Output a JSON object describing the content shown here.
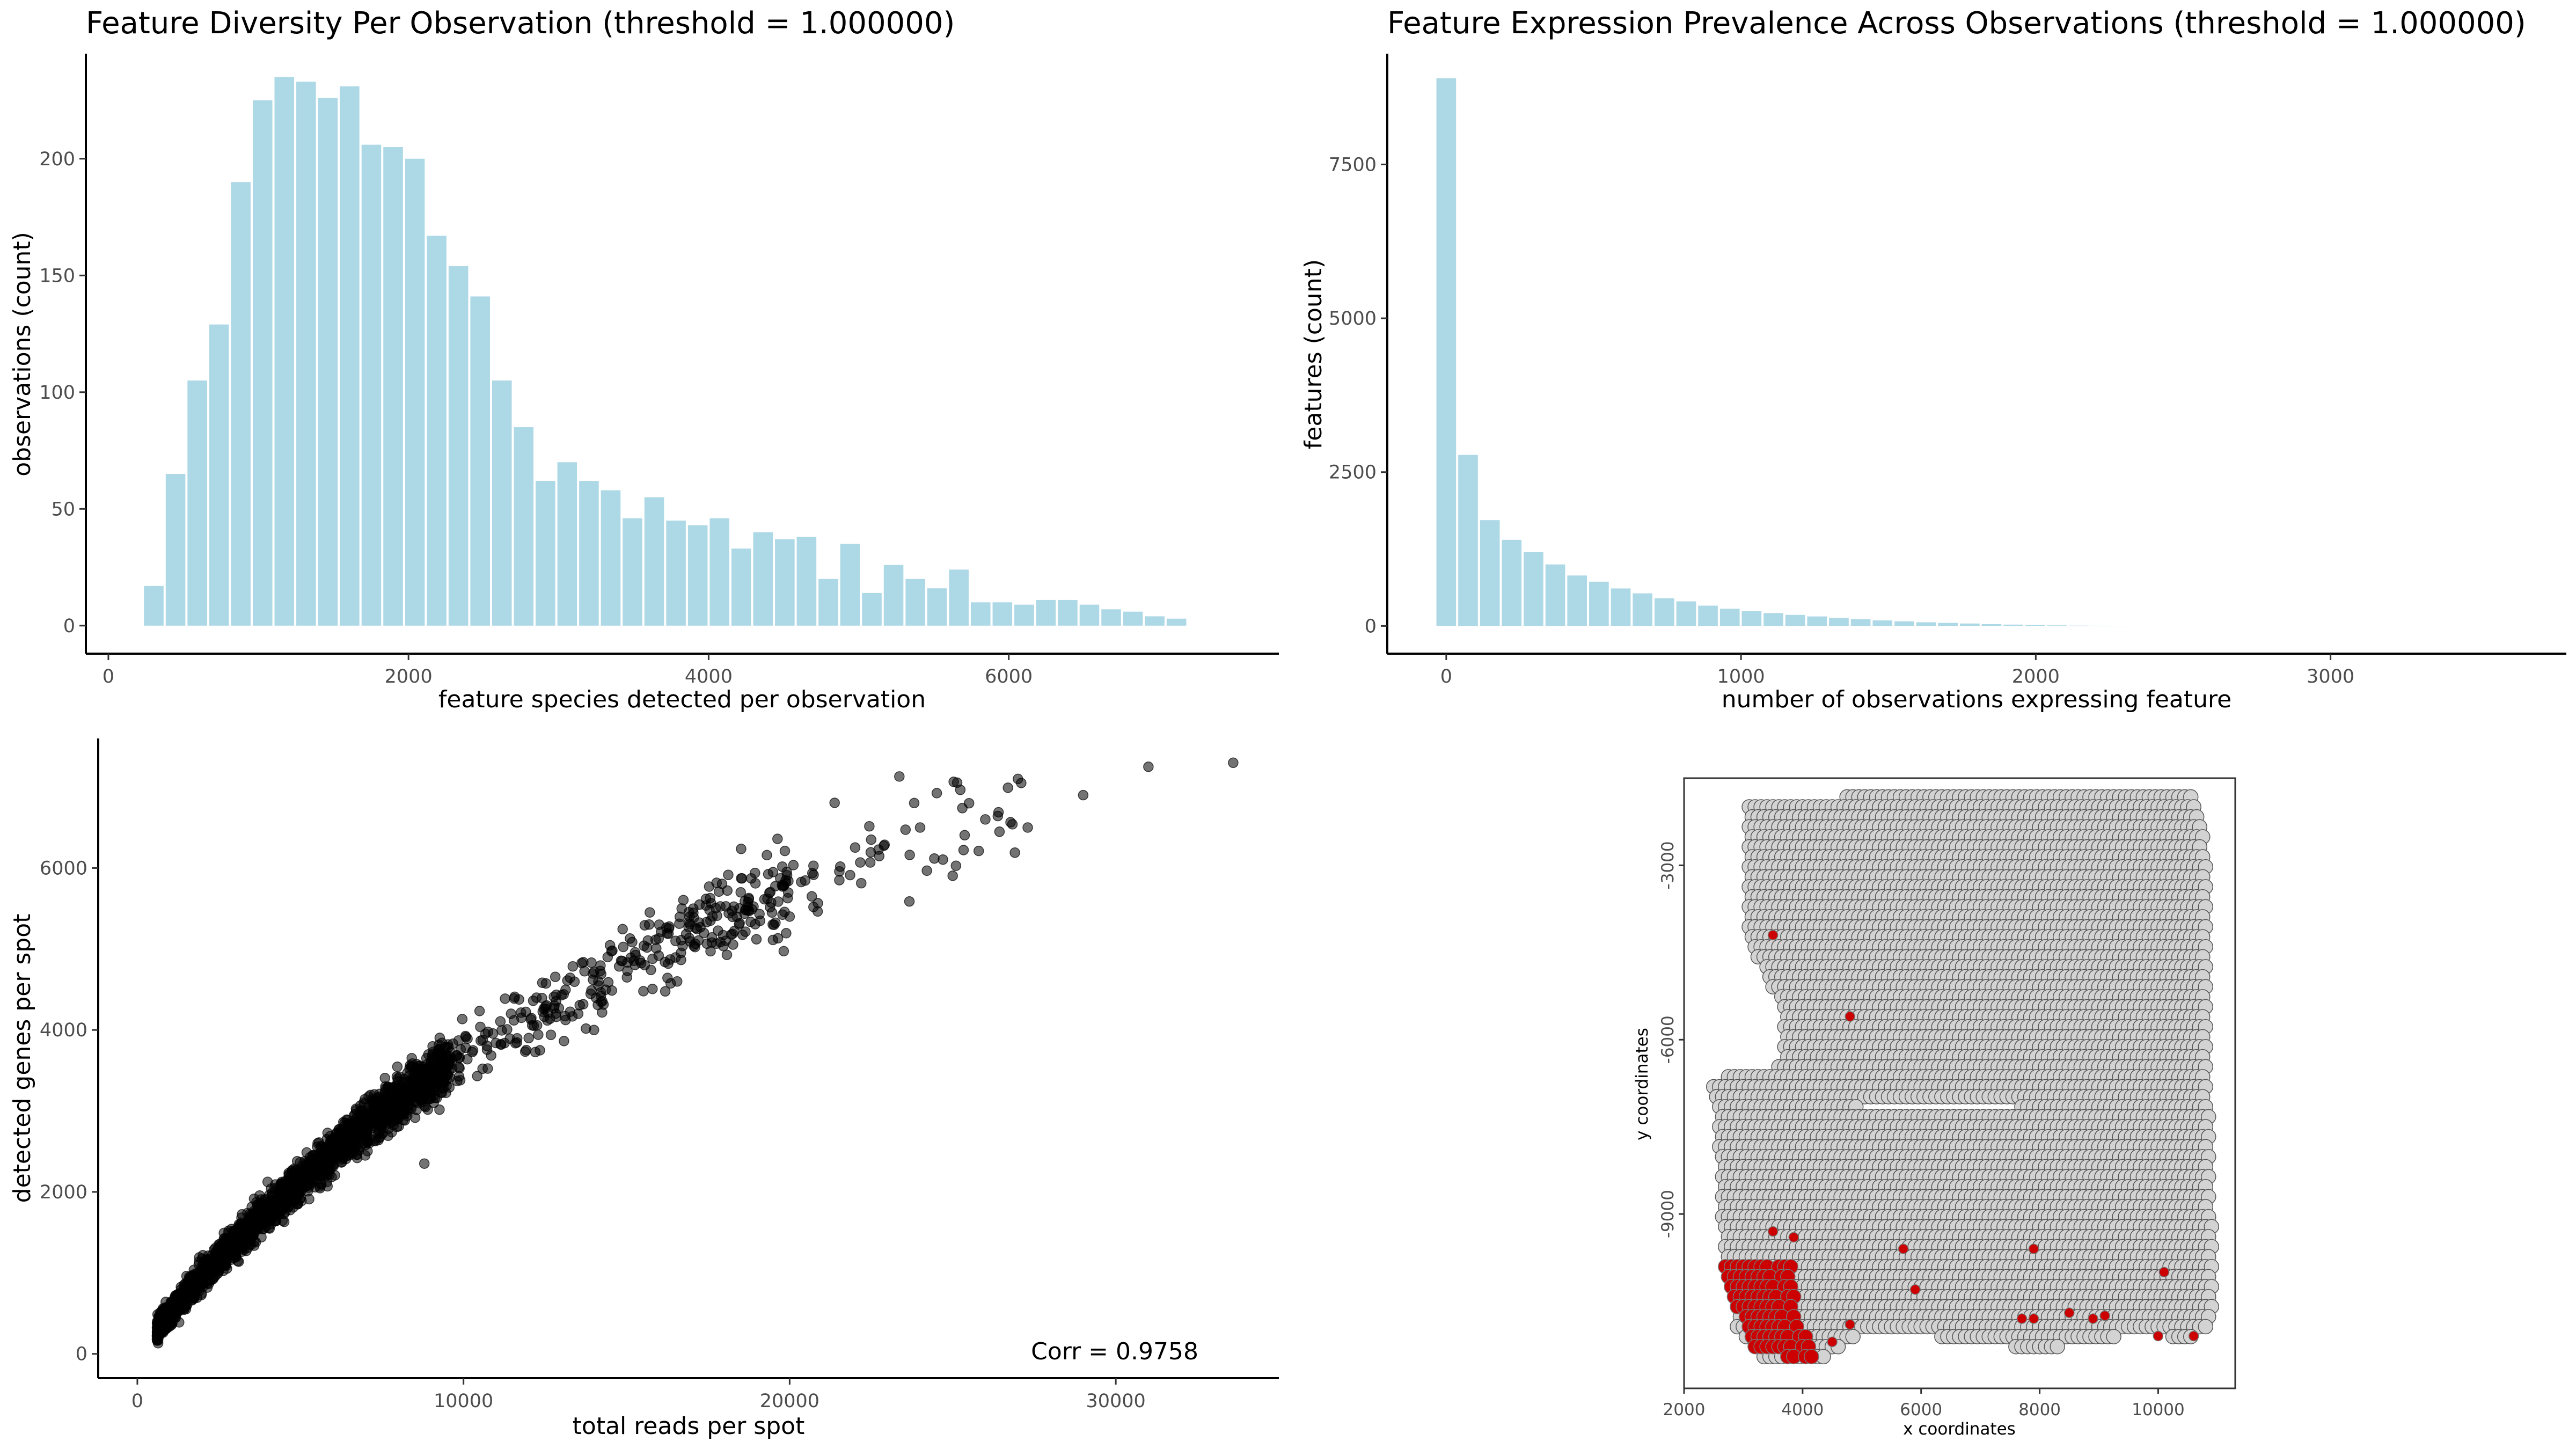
{
  "chart_data": [
    {
      "type": "bar",
      "title": "Feature Diversity Per Observation (threshold = 1.000000)",
      "xlabel": "feature species detected per observation",
      "ylabel": "observations (count)",
      "xlim": [
        -150,
        7800
      ],
      "ylim": [
        -12,
        245
      ],
      "xticks": [
        0,
        2000,
        4000,
        6000
      ],
      "xtick_labels": [
        "0",
        "2000",
        "4000",
        "6000"
      ],
      "yticks": [
        0,
        50,
        100,
        150,
        200
      ],
      "ytick_labels": [
        "0",
        "50",
        "100",
        "150",
        "200"
      ],
      "bin_start": 230,
      "bin_width": 145,
      "values": [
        17,
        65,
        105,
        129,
        190,
        225,
        235,
        233,
        226,
        231,
        206,
        205,
        200,
        167,
        154,
        141,
        105,
        85,
        62,
        70,
        62,
        58,
        46,
        55,
        45,
        43,
        46,
        33,
        40,
        37,
        38,
        20,
        35,
        14,
        26,
        20,
        16,
        24,
        10,
        10,
        9,
        11,
        11,
        9,
        7,
        6,
        4,
        3
      ],
      "bar_color": "#add8e6",
      "grid": false
    },
    {
      "type": "bar",
      "title": "Feature Expression Prevalence Across Observations (threshold = 1.000000)",
      "xlabel": "number of observations expressing feature",
      "ylabel": "features (count)",
      "xlim": [
        -200,
        3800
      ],
      "ylim": [
        -450,
        9300
      ],
      "xticks": [
        0,
        1000,
        2000,
        3000
      ],
      "xtick_labels": [
        "0",
        "1000",
        "2000",
        "3000"
      ],
      "yticks": [
        0,
        2500,
        5000,
        7500
      ],
      "ytick_labels": [
        "0",
        "2500",
        "5000",
        "7500"
      ],
      "bin_start": -37,
      "bin_width": 74,
      "values": [
        8900,
        2780,
        1720,
        1400,
        1200,
        1000,
        820,
        720,
        610,
        530,
        450,
        400,
        330,
        280,
        240,
        210,
        180,
        155,
        130,
        110,
        90,
        75,
        60,
        50,
        40,
        30,
        22,
        15,
        10,
        6,
        4,
        3,
        2,
        1,
        1,
        0,
        0,
        0,
        0,
        0,
        0,
        0,
        0,
        0,
        0,
        0,
        0,
        0,
        0,
        1
      ],
      "bar_color": "#add8e6",
      "grid": false
    },
    {
      "type": "scatter",
      "xlabel": "total reads per spot",
      "ylabel": "detected genes per spot",
      "xlim": [
        -1200,
        35000
      ],
      "ylim": [
        -300,
        7600
      ],
      "xticks": [
        0,
        10000,
        20000,
        30000
      ],
      "xtick_labels": [
        "0",
        "10000",
        "20000",
        "30000"
      ],
      "yticks": [
        0,
        2000,
        4000,
        6000
      ],
      "ytick_labels": [
        "0",
        "2000",
        "4000",
        "6000"
      ],
      "annotation": "Corr = 0.9758",
      "trend": [
        [
          500,
          260
        ],
        [
          1500,
          750
        ],
        [
          3000,
          1380
        ],
        [
          5000,
          2150
        ],
        [
          7000,
          2850
        ],
        [
          10000,
          3700
        ],
        [
          13000,
          4350
        ],
        [
          17000,
          5250
        ],
        [
          21000,
          5950
        ],
        [
          25000,
          6500
        ],
        [
          28000,
          6900
        ],
        [
          33600,
          7300
        ]
      ],
      "outliers": [
        [
          31000,
          7250
        ],
        [
          33600,
          7300
        ],
        [
          29000,
          6900
        ],
        [
          27000,
          7100
        ],
        [
          27100,
          7050
        ],
        [
          26000,
          6600
        ],
        [
          27300,
          6500
        ],
        [
          20000,
          5400
        ],
        [
          14000,
          4000
        ],
        [
          12000,
          3900
        ],
        [
          9000,
          3300
        ],
        [
          8800,
          2350
        ],
        [
          8000,
          2900
        ],
        [
          25500,
          6800
        ],
        [
          24000,
          6500
        ],
        [
          22500,
          6350
        ],
        [
          18500,
          5700
        ],
        [
          16000,
          5300
        ]
      ],
      "point_color": "#000000",
      "point_alpha": 0.55,
      "grid": false
    },
    {
      "type": "scatter",
      "xlabel": "x coordinates",
      "ylabel": "y coordinates",
      "xlim": [
        2000,
        11300
      ],
      "ylim": [
        -12000,
        -1500
      ],
      "xticks": [
        2000,
        4000,
        6000,
        8000,
        10000
      ],
      "xtick_labels": [
        "2000",
        "4000",
        "6000",
        "8000",
        "10000"
      ],
      "yticks": [
        -3000,
        -6000,
        -9000
      ],
      "ytick_labels": [
        "-3000",
        "-6000",
        "-9000"
      ],
      "upper_region": [
        [
          3100,
          -1950
        ],
        [
          5600,
          -1750
        ],
        [
          10600,
          -1700
        ],
        [
          10850,
          -3000
        ],
        [
          10850,
          -7100
        ],
        [
          3700,
          -7100
        ],
        [
          3700,
          -5500
        ],
        [
          3100,
          -4300
        ]
      ],
      "lower_region": [
        [
          2400,
          -6700
        ],
        [
          3600,
          -6450
        ],
        [
          4200,
          -6600
        ],
        [
          5000,
          -7200
        ],
        [
          10850,
          -7100
        ],
        [
          10950,
          -10800
        ],
        [
          10600,
          -11150
        ],
        [
          9600,
          -11050
        ],
        [
          8000,
          -11350
        ],
        [
          6200,
          -11100
        ],
        [
          5000,
          -11000
        ],
        [
          4200,
          -11600
        ],
        [
          3300,
          -11500
        ],
        [
          2900,
          -11000
        ],
        [
          2700,
          -10000
        ],
        [
          2550,
          -7200
        ]
      ],
      "red_cluster": [
        [
          2650,
          -9800
        ],
        [
          3800,
          -9800
        ],
        [
          3900,
          -10700
        ],
        [
          4200,
          -11500
        ],
        [
          3200,
          -11400
        ],
        [
          2900,
          -10600
        ]
      ],
      "red_points": [
        [
          3500,
          -4200
        ],
        [
          4800,
          -5600
        ],
        [
          5700,
          -9600
        ],
        [
          5900,
          -10300
        ],
        [
          7900,
          -9600
        ],
        [
          7700,
          -10800
        ],
        [
          7900,
          -10800
        ],
        [
          8500,
          -10700
        ],
        [
          8900,
          -10800
        ],
        [
          9100,
          -10750
        ],
        [
          10100,
          -10000
        ],
        [
          10000,
          -11100
        ],
        [
          10600,
          -11100
        ],
        [
          4800,
          -10900
        ],
        [
          4500,
          -11200
        ],
        [
          3500,
          -9300
        ],
        [
          3850,
          -9400
        ]
      ],
      "fill_color": "#d3d3d3",
      "highlight_color": "#cc0000",
      "grid": false
    }
  ]
}
